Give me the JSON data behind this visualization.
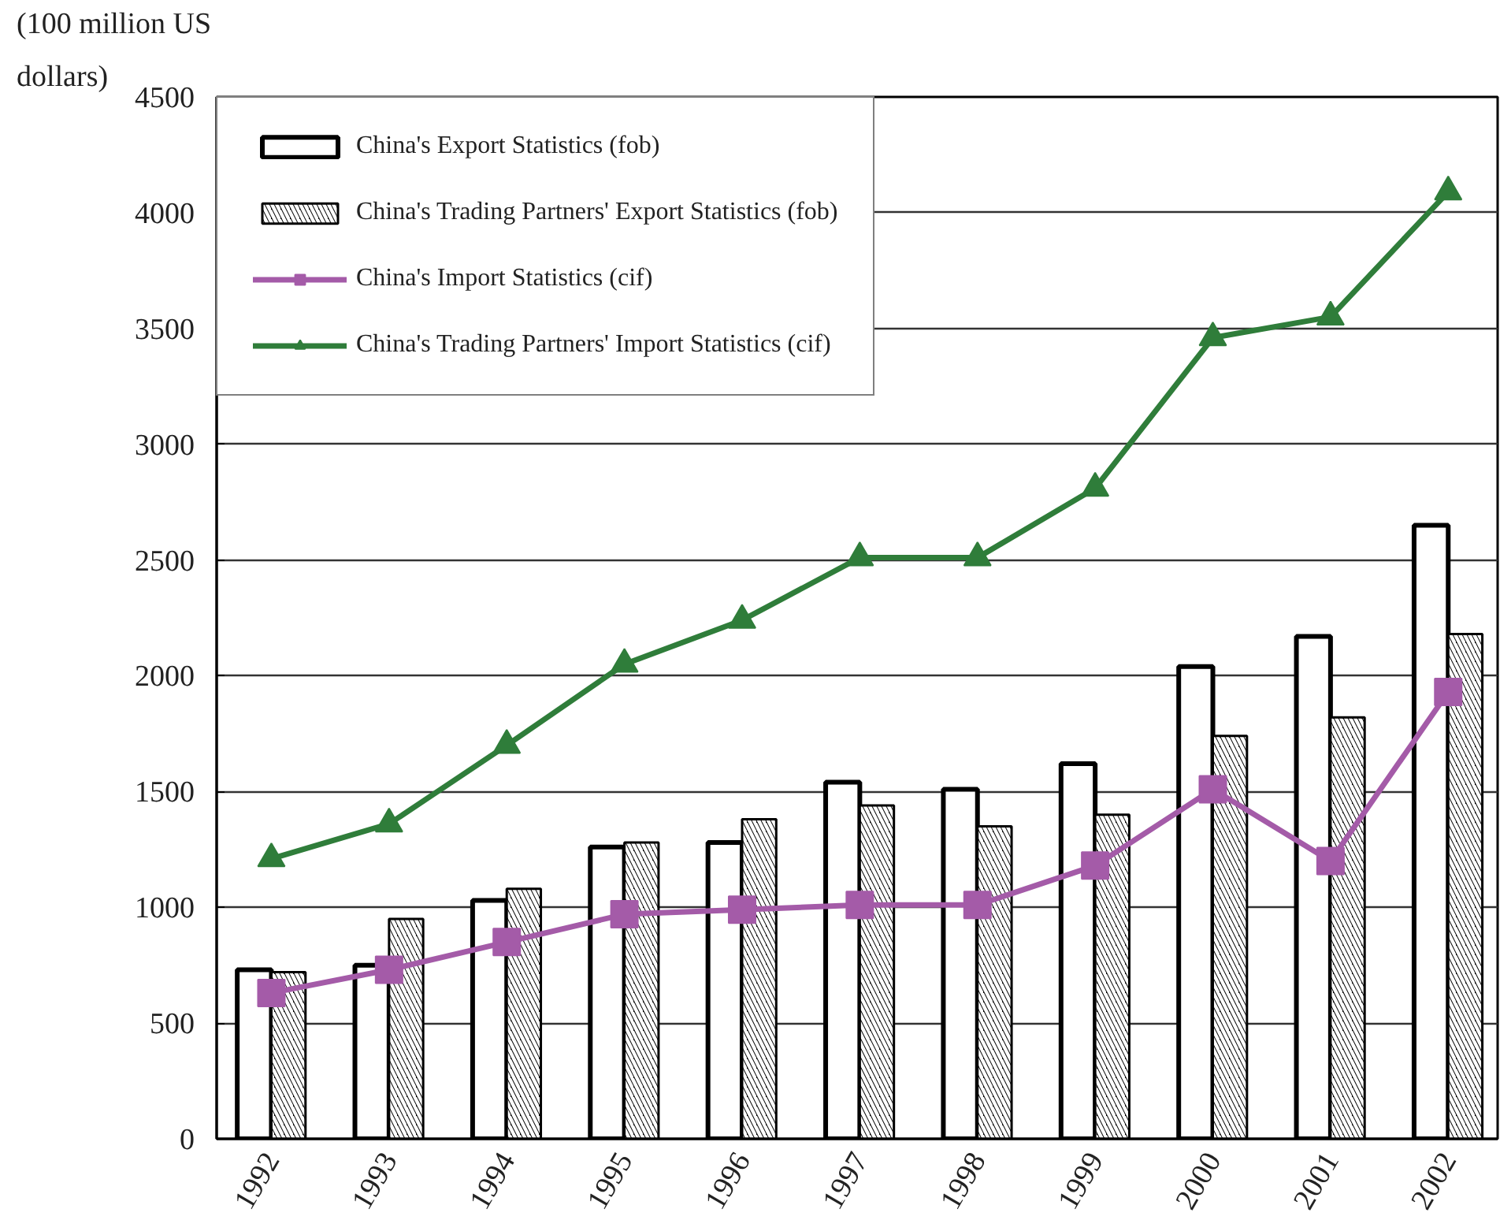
{
  "chart_data": {
    "type": "bar",
    "ylabel": "(100 million US dollars)",
    "categories": [
      "1992",
      "1993",
      "1994",
      "1995",
      "1996",
      "1997",
      "1998",
      "1999",
      "2000",
      "2001",
      "2002"
    ],
    "ylim": [
      0,
      4500
    ],
    "yticks": [
      0,
      500,
      1000,
      1500,
      2000,
      2500,
      3000,
      3500,
      4000,
      4500
    ],
    "grid": "y",
    "legend": "top left",
    "series": [
      {
        "name": "China's Export Statistics (fob)",
        "color": "#ffffff",
        "values": [
          730,
          750,
          1030,
          1260,
          1280,
          1540,
          1510,
          1620,
          2040,
          2170,
          2650
        ]
      },
      {
        "name": "China's Trading Partners' Export Statistics (fob)",
        "color": "#000000",
        "values": [
          720,
          950,
          1080,
          1280,
          1380,
          1440,
          1350,
          1400,
          1740,
          1820,
          2180
        ]
      },
      {
        "name": "China's Import Statistics (cif)",
        "type": "line",
        "marker": "square",
        "color": "#a45ba8",
        "values": [
          630,
          730,
          850,
          970,
          990,
          1010,
          1010,
          1180,
          1510,
          1200,
          1930
        ]
      },
      {
        "name": "China's Trading Partners' Import Statistics (cif)",
        "type": "line",
        "marker": "triangle",
        "color": "#2f7d3a",
        "values": [
          1210,
          1360,
          1700,
          2050,
          2240,
          2510,
          2510,
          2810,
          3460,
          3550,
          4090
        ]
      }
    ]
  }
}
